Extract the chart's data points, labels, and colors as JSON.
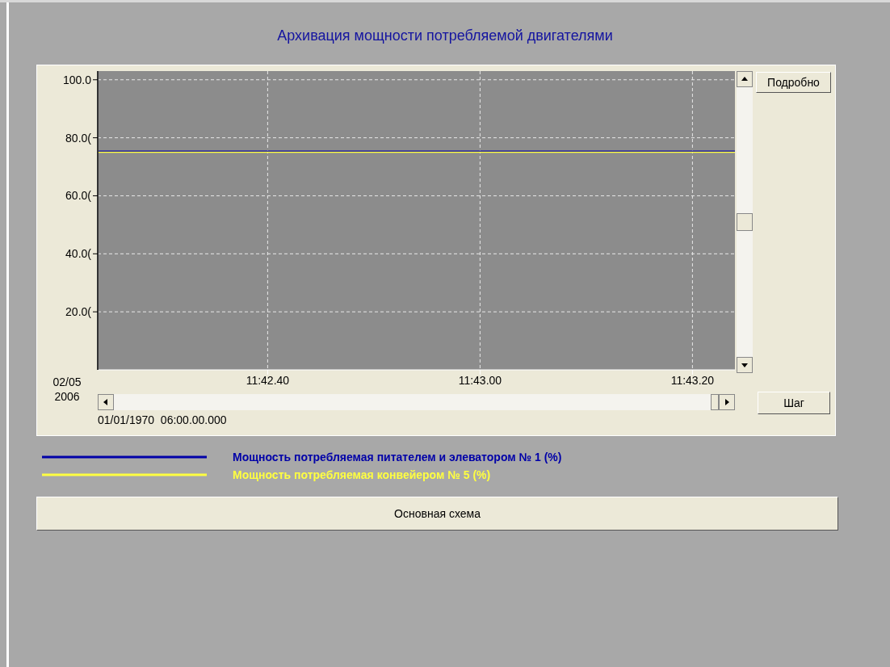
{
  "chart_data": {
    "type": "line",
    "title": "Архивация мощности потребляемой двигателями",
    "x": [
      "2006-02-05T11:42:24",
      "2006-02-05T11:43:24"
    ],
    "series": [
      {
        "name": "Мощность потребляемая питателем и элеватором № 1 (%)",
        "color": "#0000a8",
        "values": [
          75.4,
          75.4
        ]
      },
      {
        "name": "Мощность потребляемая конвейером № 5 (%)",
        "color": "#ffff40",
        "values": [
          75,
          75
        ]
      }
    ],
    "xlim": [
      "2006-02-05T11:42:24",
      "2006-02-05T11:43:24"
    ],
    "xticks": [
      {
        "value": "2006-02-05T11:42:40",
        "label": "11:42.40"
      },
      {
        "value": "2006-02-05T11:43:00",
        "label": "11:43.00"
      },
      {
        "value": "2006-02-05T11:43:20",
        "label": "11:43.20"
      }
    ],
    "ylim": [
      0,
      103
    ],
    "yticks": [
      {
        "value": 20,
        "label": "20.0("
      },
      {
        "value": 40,
        "label": "40.0("
      },
      {
        "value": 60,
        "label": "60.0("
      },
      {
        "value": 80,
        "label": "80.0("
      },
      {
        "value": 100,
        "label": "100.0"
      }
    ],
    "grid": true,
    "marker": "none",
    "legend": "bottom",
    "annotations": [
      "02/05 2006",
      "01/01/1970  06:00.00.000",
      "Подробно",
      "Шаг",
      "Основная схема"
    ]
  }
}
